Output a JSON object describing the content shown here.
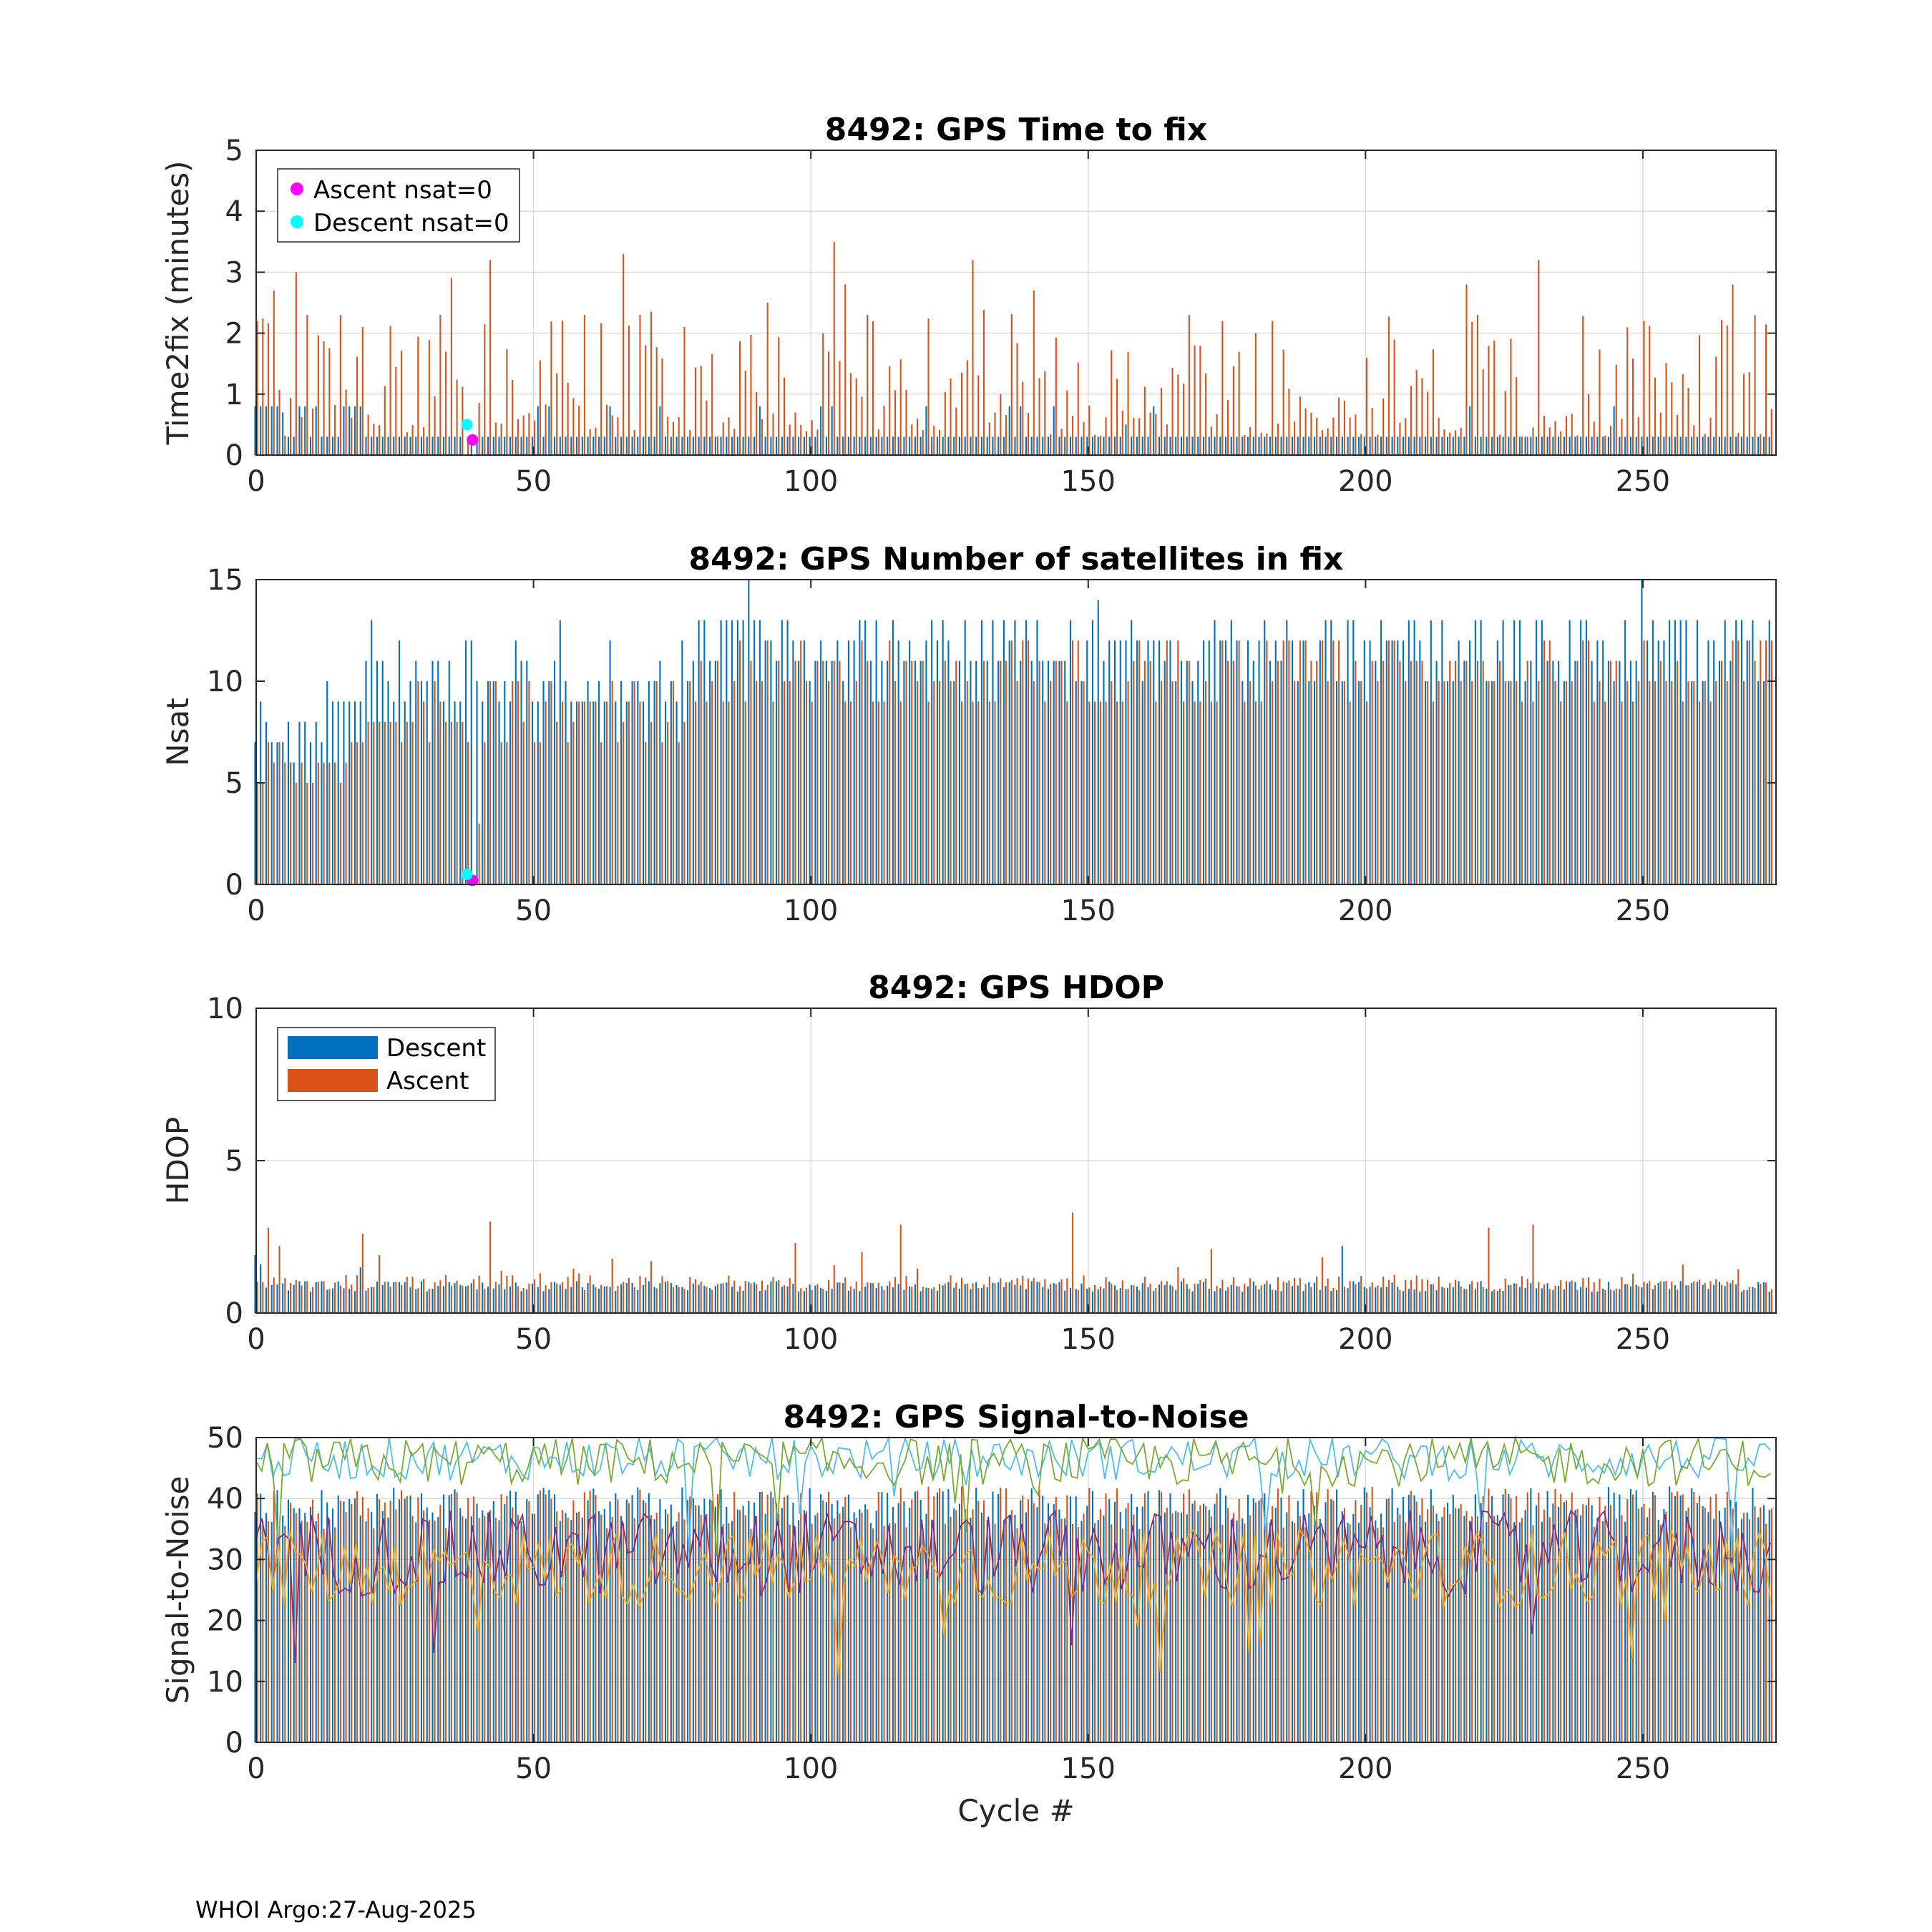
{
  "chart_data": [
    {
      "type": "bar",
      "title": "8492: GPS Time to fix",
      "xlabel": "",
      "ylabel": "Time2fix (minutes)",
      "xlim": [
        0,
        274
      ],
      "ylim": [
        0,
        5
      ],
      "xticks": [
        0,
        50,
        100,
        150,
        200,
        250
      ],
      "yticks": [
        0,
        1,
        2,
        3,
        4,
        5
      ],
      "grid": true,
      "legend": {
        "position": "top-left",
        "entries": [
          "Ascent nsat=0",
          "Descent nsat=0"
        ]
      },
      "series": [
        {
          "name": "Descent",
          "color": "#0072BD",
          "pattern": "mostly ~0.3 with occasional 0.8",
          "values_sample": {
            "x": [
              0,
              1,
              2,
              3,
              4,
              5,
              6,
              9,
              18,
              19,
              40,
              60,
              100,
              130,
              138,
              157,
              200,
              250,
              273
            ],
            "y": [
              0.8,
              0.8,
              0.8,
              0.8,
              0.8,
              0.7,
              0.3,
              0.8,
              0.8,
              0.8,
              0.3,
              0.3,
              0.3,
              0.3,
              0.8,
              0.5,
              0.3,
              0.3,
              0.3
            ]
          }
        },
        {
          "name": "Ascent",
          "color": "#D95319",
          "values_sample": {
            "x": [
              0,
              3,
              7,
              9,
              15,
              33,
              35,
              38,
              42,
              59,
              66,
              69,
              92,
              102,
              104,
              106,
              110,
              129,
              140,
              168,
              169,
              180,
              218,
              220,
              231,
              266
            ],
            "y": [
              2.2,
              2.7,
              3.0,
              2.3,
              2.3,
              2.3,
              2.9,
              0.3,
              3.2,
              2.3,
              3.3,
              2.3,
              2.5,
              2.0,
              3.5,
              2.8,
              2.3,
              3.2,
              2.7,
              2.3,
              1.8,
              2.0,
              2.8,
              2.3,
              3.2,
              2.8
            ]
          }
        }
      ],
      "markers": [
        {
          "name": "Ascent nsat=0",
          "color": "#FF00FF",
          "x": 39,
          "y": 0.25
        },
        {
          "name": "Descent nsat=0",
          "color": "#00FFFF",
          "x": 38,
          "y": 0.5
        }
      ]
    },
    {
      "type": "bar",
      "title": "8492: GPS Number of satellites in fix",
      "xlabel": "",
      "ylabel": "Nsat",
      "xlim": [
        0,
        274
      ],
      "ylim": [
        0,
        15
      ],
      "xticks": [
        0,
        50,
        100,
        150,
        200,
        250
      ],
      "yticks": [
        0,
        5,
        10,
        15
      ],
      "grid": false,
      "series": [
        {
          "name": "Descent",
          "color": "#0072BD",
          "values_sample": {
            "x": [
              0,
              5,
              13,
              21,
              26,
              38,
              55,
              80,
              89,
              115,
              152,
              192,
              250,
              270
            ],
            "y": [
              7,
              7,
              10,
              13,
              12,
              12,
              13,
              13,
              15,
              13,
              14,
              12,
              15,
              13
            ]
          }
        },
        {
          "name": "Ascent",
          "color": "#D95319",
          "values_sample": {
            "x": [
              0,
              10,
              20,
              40,
              60,
              80,
              100,
              150,
              200,
              250,
              273
            ],
            "y": [
              5,
              5,
              8,
              3,
              9,
              11,
              9,
              9,
              9,
              12,
              12
            ]
          }
        }
      ],
      "markers": [
        {
          "name": "Ascent nsat=0",
          "color": "#FF00FF",
          "x": 39,
          "y": 0.2
        },
        {
          "name": "Descent nsat=0",
          "color": "#00FFFF",
          "x": 38,
          "y": 0.5
        }
      ]
    },
    {
      "type": "bar",
      "title": "8492: GPS HDOP",
      "xlabel": "",
      "ylabel": "HDOP",
      "xlim": [
        0,
        274
      ],
      "ylim": [
        0,
        10
      ],
      "xticks": [
        0,
        50,
        100,
        150,
        200,
        250
      ],
      "yticks": [
        0,
        5,
        10
      ],
      "grid": true,
      "legend": {
        "position": "top-left",
        "entries": [
          "Descent",
          "Ascent"
        ]
      },
      "series": [
        {
          "name": "Descent",
          "color": "#0072BD",
          "values_sample": {
            "x": [
              0,
              1,
              19,
              196,
              273
            ],
            "y": [
              1.9,
              1.6,
              1.5,
              2.2,
              0.7
            ]
          }
        },
        {
          "name": "Ascent",
          "color": "#D95319",
          "values_sample": {
            "x": [
              2,
              4,
              19,
              22,
              42,
              97,
              109,
              116,
              147,
              172,
              222,
              230
            ],
            "y": [
              2.8,
              2.2,
              2.6,
              1.9,
              3.0,
              2.3,
              2.0,
              2.9,
              3.3,
              2.1,
              2.8,
              2.9
            ]
          }
        }
      ]
    },
    {
      "type": "bar+line",
      "title": "8492: GPS Signal-to-Noise",
      "xlabel": "Cycle #",
      "ylabel": "Signal-to-Noise",
      "xlim": [
        0,
        274
      ],
      "ylim": [
        0,
        50
      ],
      "xticks": [
        0,
        50,
        100,
        150,
        200,
        250
      ],
      "yticks": [
        0,
        10,
        20,
        30,
        40,
        50
      ],
      "grid": true,
      "series": [
        {
          "name": "Descent",
          "color": "#0072BD",
          "pattern": "bars ~38-42"
        },
        {
          "name": "Ascent",
          "color": "#D95319",
          "pattern": "bars ~36-42"
        },
        {
          "name": "line-1",
          "color": "#4DBEEE",
          "pattern": "~44-50"
        },
        {
          "name": "line-2",
          "color": "#77AC30",
          "pattern": "~42-50"
        },
        {
          "name": "line-3",
          "color": "#7E2F8E",
          "pattern": "~25-38"
        },
        {
          "name": "line-4",
          "color": "#EDB120",
          "pattern": "~22-35"
        }
      ]
    }
  ],
  "footer": "WHOI Argo:27-Aug-2025"
}
